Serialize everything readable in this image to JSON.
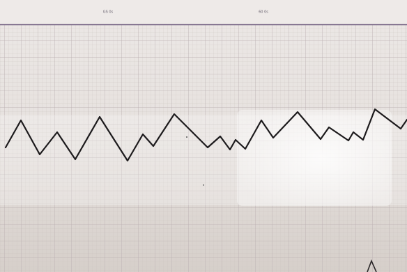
{
  "header": {
    "labels": [
      "GS 0s",
      "60 0s"
    ]
  }
}
